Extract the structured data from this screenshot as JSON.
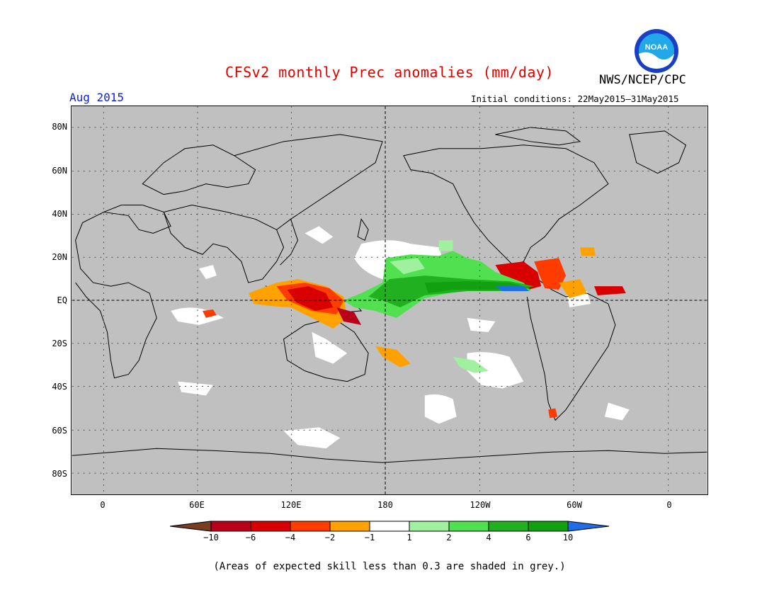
{
  "header": {
    "title": "CFSv2 monthly Prec anomalies (mm/day)",
    "agency": "NWS/NCEP/CPC",
    "month": "Aug 2015",
    "initial_conditions": "Initial conditions: 22May2015–31May2015",
    "logo_text": "NOAA"
  },
  "map": {
    "lat_labels": [
      "80N",
      "60N",
      "40N",
      "20N",
      "EQ",
      "20S",
      "40S",
      "60S",
      "80S"
    ],
    "lon_labels": [
      "0",
      "60E",
      "120E",
      "180",
      "120W",
      "60W",
      "0"
    ],
    "skill_mask_color": "#c0c0c0"
  },
  "legend": {
    "labels": [
      "−10",
      "−6",
      "−4",
      "−2",
      "−1",
      "1",
      "2",
      "4",
      "6",
      "10"
    ],
    "colors": [
      "#7a3d1f",
      "#b8001a",
      "#d80000",
      "#ff3c00",
      "#ffa200",
      "#ffffff",
      "#a0f0a0",
      "#50e050",
      "#20b020",
      "#10a010",
      "#1e6ee8"
    ]
  },
  "footnote": "(Areas of expected skill less than 0.3 are shaded in grey.)"
}
